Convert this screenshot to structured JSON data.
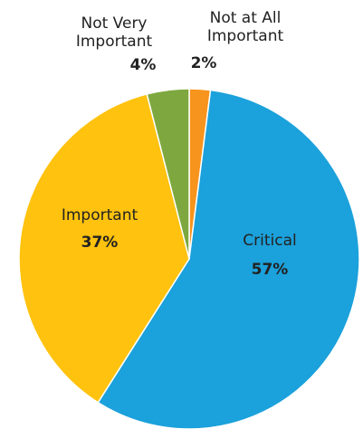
{
  "chart_data": {
    "type": "pie",
    "title": "",
    "start": "top",
    "direction": "clockwise",
    "slices": [
      {
        "name": "Not at All Important",
        "value": 2,
        "label": "2%",
        "color": "#F7941D"
      },
      {
        "name": "Critical",
        "value": 57,
        "label": "57%",
        "color": "#1BA1DB"
      },
      {
        "name": "Important",
        "value": 37,
        "label": "37%",
        "color": "#FFC20E"
      },
      {
        "name": "Not Very Important",
        "value": 4,
        "label": "4%",
        "color": "#7EA83F"
      }
    ],
    "label_text": {
      "not_at_all_line1": "Not at All",
      "not_at_all_line2": "Important",
      "critical": "Critical",
      "important": "Important",
      "not_very_line1": "Not Very",
      "not_very_line2": "Important"
    }
  }
}
